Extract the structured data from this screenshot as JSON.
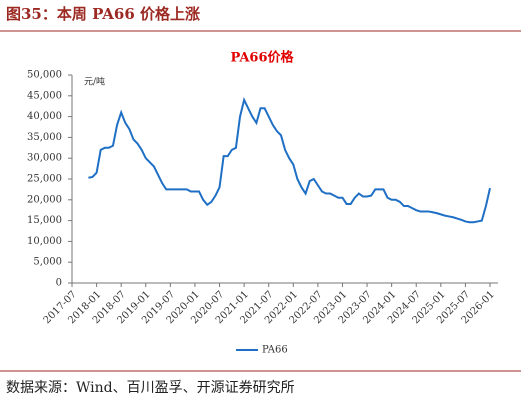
{
  "caption": "图35：本周 PA66 价格上涨",
  "chart_data": {
    "type": "line",
    "title": "PA66价格",
    "y_unit": "元/吨",
    "x": [
      "2017-11",
      "2017-12",
      "2018-01",
      "2018-02",
      "2018-03",
      "2018-04",
      "2018-05",
      "2018-06",
      "2018-07",
      "2018-08",
      "2018-09",
      "2018-10",
      "2018-11",
      "2018-12",
      "2019-01",
      "2019-02",
      "2019-03",
      "2019-04",
      "2019-05",
      "2019-06",
      "2019-07",
      "2019-08",
      "2019-09",
      "2019-10",
      "2019-11",
      "2019-12",
      "2020-01",
      "2020-02",
      "2020-03",
      "2020-04",
      "2020-05",
      "2020-06",
      "2020-07",
      "2020-08",
      "2020-09",
      "2020-10",
      "2020-11",
      "2020-12",
      "2021-01",
      "2021-02",
      "2021-03",
      "2021-04",
      "2021-05",
      "2021-06",
      "2021-07",
      "2021-08",
      "2021-09",
      "2021-10",
      "2021-11",
      "2021-12",
      "2022-01",
      "2022-02",
      "2022-03",
      "2022-04",
      "2022-05",
      "2022-06",
      "2022-07",
      "2022-08",
      "2022-09",
      "2022-10",
      "2022-11",
      "2022-12",
      "2023-01",
      "2023-02",
      "2023-03",
      "2023-04",
      "2023-05",
      "2023-06",
      "2023-07",
      "2023-08",
      "2023-09",
      "2023-10",
      "2023-11",
      "2023-12",
      "2024-01",
      "2024-02",
      "2024-03",
      "2024-04",
      "2024-05",
      "2024-06",
      "2024-07",
      "2024-08",
      "2024-09",
      "2024-10",
      "2024-11",
      "2024-12",
      "2025-01",
      "2025-02",
      "2025-03",
      "2025-04",
      "2025-05",
      "2025-06",
      "2025-07",
      "2025-08",
      "2025-09",
      "2025-10",
      "2025-11",
      "2025-12",
      "2026-01"
    ],
    "series": [
      {
        "name": "PA66",
        "color": "#1f6fc5",
        "values": [
          25300,
          25500,
          26500,
          32000,
          32500,
          32500,
          33000,
          38000,
          41000,
          38500,
          37000,
          34500,
          33500,
          32000,
          30000,
          29000,
          28000,
          26000,
          24000,
          22500,
          22500,
          22500,
          22500,
          22500,
          22500,
          22000,
          22000,
          22000,
          20000,
          18800,
          19500,
          21000,
          23000,
          30500,
          30500,
          32000,
          32500,
          40000,
          44000,
          42000,
          40000,
          38500,
          42000,
          42000,
          40000,
          38000,
          36500,
          35500,
          32000,
          30000,
          28500,
          25000,
          23000,
          21500,
          24500,
          25000,
          23500,
          22000,
          21500,
          21500,
          21000,
          20500,
          20500,
          19000,
          19000,
          20500,
          21500,
          20800,
          20800,
          21000,
          22500,
          22500,
          22500,
          20500,
          20000,
          20000,
          19500,
          18500,
          18500,
          18000,
          17500,
          17200,
          17200,
          17200,
          17000,
          16800,
          16500,
          16200,
          16000,
          15800,
          15500,
          15200,
          14800,
          14600,
          14600,
          14800,
          15000,
          18500,
          22800
        ]
      }
    ],
    "xlim": [
      "2017-07",
      "2026-01"
    ],
    "xticks": [
      "2017-07",
      "2018-01",
      "2018-07",
      "2019-01",
      "2019-07",
      "2020-01",
      "2020-07",
      "2021-01",
      "2021-07",
      "2022-01",
      "2022-07",
      "2023-01",
      "2023-07",
      "2024-01",
      "2024-07",
      "2025-01",
      "2025-07",
      "2026-01"
    ],
    "ylim": [
      0,
      50000
    ],
    "yticks": [
      0,
      {
        "value": 5000,
        "label": "5,000"
      },
      {
        "value": 10000,
        "label": "10,000"
      },
      {
        "value": 15000,
        "label": "15,000"
      },
      {
        "value": 20000,
        "label": "20,000"
      },
      {
        "value": 25000,
        "label": "25,000"
      },
      {
        "value": 30000,
        "label": "30,000"
      },
      {
        "value": 35000,
        "label": "35,000"
      },
      {
        "value": 40000,
        "label": "40,000"
      },
      {
        "value": 45000,
        "label": "45,000"
      },
      {
        "value": 50000,
        "label": "50,000"
      }
    ],
    "legend": "bottom"
  },
  "source": "数据来源：Wind、百川盈孚、开源证券研究所"
}
